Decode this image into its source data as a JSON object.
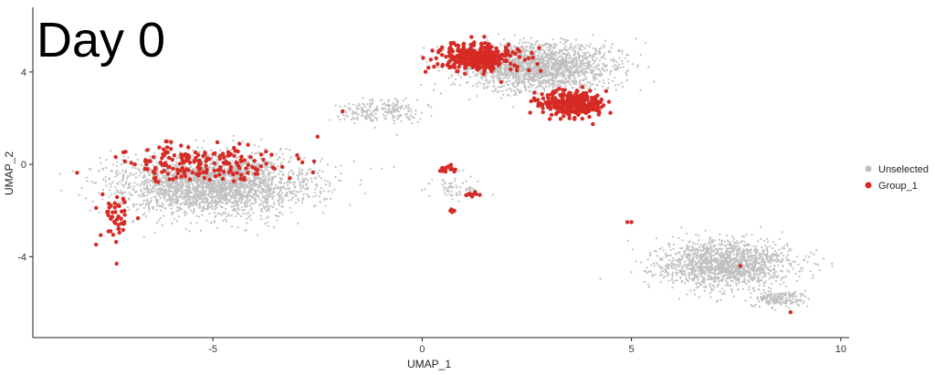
{
  "chart_data": {
    "type": "scatter",
    "title": "Day 0",
    "xlabel": "UMAP_1",
    "ylabel": "UMAP_2",
    "xlim": [
      -9.3,
      10.2
    ],
    "ylim": [
      -7.5,
      6.8
    ],
    "xticks": [
      -5,
      0,
      5,
      10
    ],
    "yticks": [
      -4,
      0,
      4
    ],
    "legend_position": "right",
    "series": [
      {
        "name": "Unselected",
        "color": "#c0c0c0",
        "clusters": [
          {
            "center": [
              -5.0,
              -0.9
            ],
            "spread": [
              2.1,
              1.2
            ],
            "count": 2600
          },
          {
            "center": [
              2.8,
              4.2
            ],
            "spread": [
              1.6,
              0.95
            ],
            "count": 1900
          },
          {
            "center": [
              -1.0,
              2.3
            ],
            "spread": [
              0.9,
              0.5
            ],
            "count": 220
          },
          {
            "center": [
              7.2,
              -4.3
            ],
            "spread": [
              1.4,
              0.9
            ],
            "count": 1500
          },
          {
            "center": [
              8.5,
              -5.8
            ],
            "spread": [
              0.6,
              0.35
            ],
            "count": 200
          },
          {
            "center": [
              0.8,
              -1.0
            ],
            "spread": [
              0.5,
              0.45
            ],
            "count": 70
          }
        ]
      },
      {
        "name": "Group_1",
        "color": "#d62a24",
        "clusters": [
          {
            "center": [
              -5.2,
              0.1
            ],
            "spread": [
              1.6,
              0.7
            ],
            "count": 190
          },
          {
            "center": [
              -7.3,
              -2.4
            ],
            "spread": [
              0.35,
              0.9
            ],
            "count": 45
          },
          {
            "center": [
              1.4,
              4.6
            ],
            "spread": [
              0.9,
              0.55
            ],
            "count": 340
          },
          {
            "center": [
              3.6,
              2.6
            ],
            "spread": [
              0.7,
              0.55
            ],
            "count": 280
          },
          {
            "center": [
              0.5,
              -0.2
            ],
            "spread": [
              0.25,
              0.12
            ],
            "count": 14
          },
          {
            "center": [
              1.2,
              -1.3
            ],
            "spread": [
              0.2,
              0.12
            ],
            "count": 10
          },
          {
            "center": [
              0.7,
              -2.0
            ],
            "spread": [
              0.1,
              0.08
            ],
            "count": 5
          }
        ],
        "points": [
          [
            -7.3,
            -4.3
          ],
          [
            4.9,
            -2.5
          ],
          [
            5.0,
            -2.5
          ],
          [
            7.6,
            -4.4
          ],
          [
            8.8,
            -6.4
          ],
          [
            -1.9,
            2.3
          ],
          [
            -2.5,
            1.2
          ]
        ]
      }
    ]
  }
}
